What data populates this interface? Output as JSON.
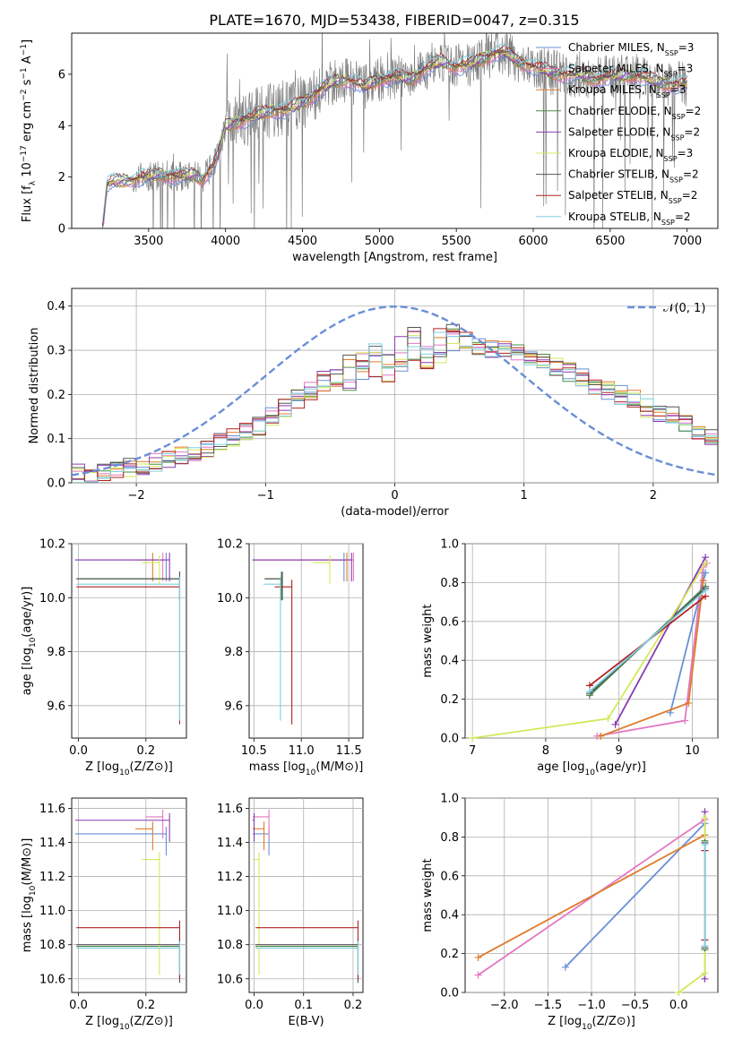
{
  "figure_title": "PLATE=1670, MJD=53438, FIBERID=0047, z=0.315",
  "colors": {
    "chabrier_miles": "#6a8fd6",
    "salpeter_miles": "#e377c2",
    "kroupa_miles": "#e07b2c",
    "chabrier_elodie": "#4a8a4a",
    "salpeter_elodie": "#8a3cb0",
    "kroupa_elodie": "#d4e85a",
    "chabrier_stelib": "#555555",
    "salpeter_stelib": "#b22222",
    "kroupa_stelib": "#7fd0e0",
    "spectrum": "#7f7f7f",
    "normal_curve": "#6a8fd6",
    "grid": "#b0b0b0"
  },
  "chart_data": [
    {
      "id": "spectrum",
      "type": "line",
      "xlabel": "wavelength [Angstrom, rest frame]",
      "ylabel": "Flux [f_λ 10^-17 erg cm^-2 s^-1 A^-1]",
      "xlim": [
        3000,
        7200
      ],
      "ylim": [
        0,
        7.6
      ],
      "xticks": [
        "3500",
        "4000",
        "4500",
        "5000",
        "5500",
        "6000",
        "6500",
        "7000"
      ],
      "yticks": [
        "0",
        "2",
        "4",
        "6"
      ],
      "grid": false,
      "legend_position": "upper-right",
      "legend": [
        {
          "label": "Chabrier MILES, N",
          "sub": "SSP",
          "tail": "=3",
          "color": "#6a8fd6"
        },
        {
          "label": "Salpeter MILES, N",
          "sub": "SSP",
          "tail": "=3",
          "color": "#e377c2"
        },
        {
          "label": "Kroupa MILES, N",
          "sub": "SSP",
          "tail": "=3",
          "color": "#e07b2c"
        },
        {
          "label": "Chabrier ELODIE, N",
          "sub": "SSP",
          "tail": "=2",
          "color": "#4a8a4a"
        },
        {
          "label": "Salpeter ELODIE, N",
          "sub": "SSP",
          "tail": "=2",
          "color": "#8a3cb0"
        },
        {
          "label": "Kroupa ELODIE, N",
          "sub": "SSP",
          "tail": "=3",
          "color": "#d4e85a"
        },
        {
          "label": "Chabrier STELIB, N",
          "sub": "SSP",
          "tail": "=2",
          "color": "#555555"
        },
        {
          "label": "Salpeter STELIB, N",
          "sub": "SSP",
          "tail": "=2",
          "color": "#b22222"
        },
        {
          "label": "Kroupa STELIB, N",
          "sub": "SSP",
          "tail": "=2",
          "color": "#7fd0e0"
        }
      ],
      "continuum": {
        "x": [
          3200,
          3230,
          3260,
          3400,
          3500,
          3600,
          3700,
          3800,
          3850,
          3900,
          3950,
          4000,
          4100,
          4200,
          4300,
          4400,
          4500,
          4600,
          4700,
          4800,
          4900,
          5000,
          5100,
          5200,
          5300,
          5400,
          5500,
          5600,
          5700,
          5800,
          5900,
          6000,
          6100,
          6200,
          6300,
          6400,
          6500,
          6600,
          6700,
          6800,
          6900,
          7000
        ],
        "y": [
          0.0,
          1.7,
          1.8,
          1.9,
          2.05,
          2.1,
          2.0,
          2.1,
          1.9,
          2.3,
          2.8,
          4.0,
          4.2,
          4.4,
          4.6,
          4.6,
          4.9,
          5.3,
          5.7,
          5.8,
          5.5,
          5.8,
          5.9,
          5.8,
          6.2,
          6.5,
          6.3,
          6.4,
          6.7,
          6.9,
          6.5,
          6.3,
          6.1,
          6.0,
          6.0,
          5.8,
          5.9,
          6.0,
          5.9,
          5.7,
          5.6,
          5.6
        ]
      }
    },
    {
      "id": "residuals",
      "type": "step",
      "xlabel": "(data-model)/error",
      "ylabel": "Normed distribution",
      "xlim": [
        -2.5,
        2.5
      ],
      "ylim": [
        0,
        0.44
      ],
      "xticks": [
        "-2",
        "-1",
        "0",
        "1",
        "2"
      ],
      "yticks": [
        "0.0",
        "0.1",
        "0.2",
        "0.3",
        "0.4"
      ],
      "grid": true,
      "legend": [
        {
          "label": "𝒩(0, 1)",
          "color": "#6a8fd6"
        }
      ],
      "legend_position": "upper-right",
      "bin_edges_start": -2.5,
      "bin_width": 0.1,
      "base_values": [
        0.02,
        0.02,
        0.025,
        0.03,
        0.035,
        0.04,
        0.045,
        0.05,
        0.06,
        0.07,
        0.08,
        0.09,
        0.1,
        0.12,
        0.13,
        0.15,
        0.17,
        0.19,
        0.21,
        0.23,
        0.24,
        0.25,
        0.27,
        0.28,
        0.27,
        0.29,
        0.31,
        0.3,
        0.31,
        0.32,
        0.32,
        0.31,
        0.3,
        0.3,
        0.29,
        0.28,
        0.27,
        0.26,
        0.25,
        0.24,
        0.22,
        0.21,
        0.2,
        0.19,
        0.17,
        0.16,
        0.15,
        0.13,
        0.12,
        0.1
      ]
    },
    {
      "id": "age_vs_Z",
      "type": "errorbar",
      "xlabel": "Z [log10(Z/Z⊙)]",
      "ylabel": "age  [log10(age/yr)]",
      "xlim": [
        -0.02,
        0.32
      ],
      "ylim": [
        9.48,
        10.2
      ],
      "xticks": [
        "0.0",
        "0.2"
      ],
      "yticks": [
        "9.6",
        "9.8",
        "10.0",
        "10.2"
      ],
      "grid": true,
      "points": [
        {
          "x": 0.26,
          "y": 10.14,
          "color": "#6a8fd6"
        },
        {
          "x": 0.25,
          "y": 10.14,
          "color": "#e377c2"
        },
        {
          "x": 0.22,
          "y": 10.14,
          "color": "#e07b2c"
        },
        {
          "x": 0.3,
          "y": 10.07,
          "color": "#4a8a4a"
        },
        {
          "x": 0.27,
          "y": 10.14,
          "color": "#8a3cb0"
        },
        {
          "x": 0.24,
          "y": 10.13,
          "color": "#d4e85a"
        },
        {
          "x": 0.3,
          "y": 10.07,
          "color": "#555555"
        },
        {
          "x": 0.3,
          "y": 10.04,
          "color": "#b22222"
        },
        {
          "x": 0.3,
          "y": 10.05,
          "color": "#7fd0e0"
        }
      ]
    },
    {
      "id": "age_vs_mass",
      "type": "errorbar",
      "xlabel": "mass [log10(M/M⊙)]",
      "ylabel": "",
      "xlim": [
        10.45,
        11.65
      ],
      "ylim": [
        9.48,
        10.2
      ],
      "xticks": [
        "10.5",
        "11.0",
        "11.5"
      ],
      "yticks": [
        "9.6",
        "9.8",
        "10.0",
        "10.2"
      ],
      "grid": true,
      "points": [
        {
          "x": 11.45,
          "y": 10.14,
          "color": "#6a8fd6"
        },
        {
          "x": 11.55,
          "y": 10.14,
          "color": "#e377c2"
        },
        {
          "x": 11.48,
          "y": 10.14,
          "color": "#e07b2c"
        },
        {
          "x": 10.79,
          "y": 10.07,
          "color": "#4a8a4a"
        },
        {
          "x": 11.53,
          "y": 10.14,
          "color": "#8a3cb0"
        },
        {
          "x": 11.3,
          "y": 10.13,
          "color": "#d4e85a"
        },
        {
          "x": 10.8,
          "y": 10.07,
          "color": "#555555"
        },
        {
          "x": 10.9,
          "y": 10.04,
          "color": "#b22222"
        },
        {
          "x": 10.78,
          "y": 10.05,
          "color": "#7fd0e0"
        }
      ]
    },
    {
      "id": "weight_vs_age",
      "type": "line",
      "xlabel": "age  [log10(age/yr)]",
      "ylabel": "mass weight",
      "xlim": [
        6.9,
        10.35
      ],
      "ylim": [
        0,
        1.0
      ],
      "xticks": [
        "7",
        "8",
        "9",
        "10"
      ],
      "yticks": [
        "0.0",
        "0.2",
        "0.4",
        "0.6",
        "0.8",
        "1.0"
      ],
      "grid": true,
      "series": [
        {
          "color": "#6a8fd6",
          "x": [
            9.7,
            10.18,
            10.15
          ],
          "y": [
            0.13,
            0.85,
            0.85
          ]
        },
        {
          "color": "#e377c2",
          "x": [
            8.7,
            9.9,
            10.15,
            10.2
          ],
          "y": [
            0.01,
            0.09,
            0.88,
            0.9
          ]
        },
        {
          "color": "#e07b2c",
          "x": [
            8.75,
            9.95,
            10.15
          ],
          "y": [
            0.01,
            0.18,
            0.81
          ]
        },
        {
          "color": "#4a8a4a",
          "x": [
            8.6,
            10.18
          ],
          "y": [
            0.22,
            0.78
          ]
        },
        {
          "color": "#8a3cb0",
          "x": [
            8.95,
            10.18
          ],
          "y": [
            0.07,
            0.93
          ]
        },
        {
          "color": "#d4e85a",
          "x": [
            7.0,
            8.85,
            10.18
          ],
          "y": [
            0.0,
            0.1,
            0.9
          ]
        },
        {
          "color": "#555555",
          "x": [
            8.6,
            10.18
          ],
          "y": [
            0.23,
            0.77
          ]
        },
        {
          "color": "#b22222",
          "x": [
            8.6,
            10.18
          ],
          "y": [
            0.27,
            0.73
          ]
        },
        {
          "color": "#7fd0e0",
          "x": [
            8.6,
            10.18
          ],
          "y": [
            0.24,
            0.76
          ]
        }
      ]
    },
    {
      "id": "mass_vs_Z",
      "type": "errorbar",
      "xlabel": "Z [log10(Z/Z⊙)]",
      "ylabel": "mass [log10(M/M⊙)]",
      "xlim": [
        -0.02,
        0.32
      ],
      "ylim": [
        10.52,
        11.66
      ],
      "xticks": [
        "0.0",
        "0.2"
      ],
      "yticks": [
        "10.6",
        "10.8",
        "11.0",
        "11.2",
        "11.4",
        "11.6"
      ],
      "grid": true,
      "points": [
        {
          "x": 0.26,
          "y": 11.45,
          "color": "#6a8fd6"
        },
        {
          "x": 0.25,
          "y": 11.55,
          "color": "#e377c2"
        },
        {
          "x": 0.22,
          "y": 11.48,
          "color": "#e07b2c"
        },
        {
          "x": 0.3,
          "y": 10.79,
          "color": "#4a8a4a"
        },
        {
          "x": 0.27,
          "y": 11.53,
          "color": "#8a3cb0"
        },
        {
          "x": 0.24,
          "y": 11.3,
          "color": "#d4e85a"
        },
        {
          "x": 0.3,
          "y": 10.8,
          "color": "#555555"
        },
        {
          "x": 0.3,
          "y": 10.9,
          "color": "#b22222"
        },
        {
          "x": 0.3,
          "y": 10.78,
          "color": "#7fd0e0"
        }
      ]
    },
    {
      "id": "mass_vs_ebv",
      "type": "errorbar",
      "xlabel": "E(B-V)",
      "ylabel": "",
      "xlim": [
        -0.01,
        0.22
      ],
      "ylim": [
        10.52,
        11.66
      ],
      "xticks": [
        "0.0",
        "0.1",
        "0.2"
      ],
      "yticks": [
        "10.6",
        "10.8",
        "11.0",
        "11.2",
        "11.4",
        "11.6"
      ],
      "grid": true,
      "points": [
        {
          "x": 0.03,
          "y": 11.45,
          "color": "#6a8fd6"
        },
        {
          "x": 0.03,
          "y": 11.55,
          "color": "#e377c2"
        },
        {
          "x": 0.02,
          "y": 11.48,
          "color": "#e07b2c"
        },
        {
          "x": 0.21,
          "y": 10.79,
          "color": "#4a8a4a"
        },
        {
          "x": 0.0,
          "y": 11.53,
          "color": "#8a3cb0"
        },
        {
          "x": 0.01,
          "y": 11.3,
          "color": "#d4e85a"
        },
        {
          "x": 0.21,
          "y": 10.8,
          "color": "#555555"
        },
        {
          "x": 0.21,
          "y": 10.9,
          "color": "#b22222"
        },
        {
          "x": 0.21,
          "y": 10.78,
          "color": "#7fd0e0"
        }
      ]
    },
    {
      "id": "weight_vs_Z",
      "type": "line",
      "xlabel": "Z [log10(Z/Z⊙)]",
      "ylabel": "mass weight",
      "xlim": [
        -2.45,
        0.45
      ],
      "ylim": [
        0,
        1.0
      ],
      "xticks": [
        "-2.0",
        "-1.5",
        "-1.0",
        "-0.5",
        "0.0"
      ],
      "yticks": [
        "0.0",
        "0.2",
        "0.4",
        "0.6",
        "0.8",
        "1.0"
      ],
      "grid": true,
      "series": [
        {
          "color": "#6a8fd6",
          "x": [
            -1.3,
            0.3
          ],
          "y": [
            0.13,
            0.87
          ]
        },
        {
          "color": "#e377c2",
          "x": [
            -2.3,
            0.3
          ],
          "y": [
            0.09,
            0.89
          ]
        },
        {
          "color": "#e07b2c",
          "x": [
            -2.3,
            0.3
          ],
          "y": [
            0.18,
            0.81
          ]
        },
        {
          "color": "#4a8a4a",
          "x": [
            0.3,
            0.3
          ],
          "y": [
            0.22,
            0.78
          ]
        },
        {
          "color": "#8a3cb0",
          "x": [
            0.3,
            0.3
          ],
          "y": [
            0.07,
            0.93
          ]
        },
        {
          "color": "#d4e85a",
          "x": [
            0.0,
            0.3,
            0.3
          ],
          "y": [
            0.0,
            0.1,
            0.9
          ]
        },
        {
          "color": "#555555",
          "x": [
            0.3,
            0.3
          ],
          "y": [
            0.23,
            0.77
          ]
        },
        {
          "color": "#b22222",
          "x": [
            0.3,
            0.3
          ],
          "y": [
            0.27,
            0.73
          ]
        },
        {
          "color": "#7fd0e0",
          "x": [
            0.3,
            0.3
          ],
          "y": [
            0.24,
            0.76
          ]
        }
      ]
    }
  ]
}
